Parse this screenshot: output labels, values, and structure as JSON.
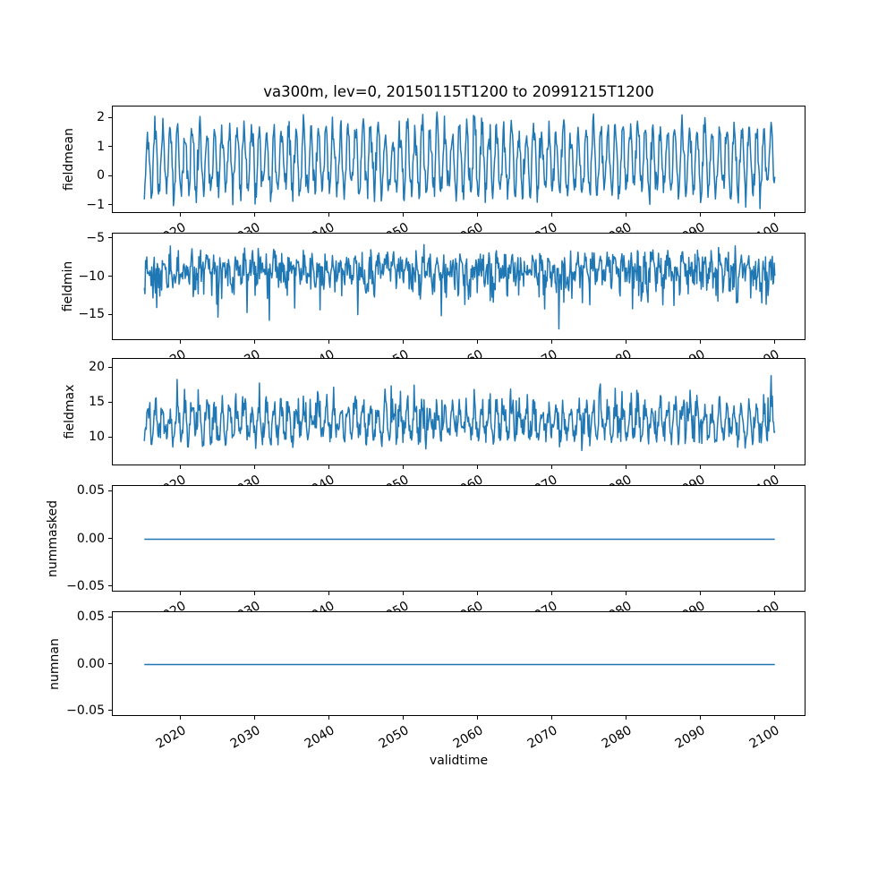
{
  "figure": {
    "title": "va300m, lev=0, 20150115T1200 to 20991215T1200",
    "xlabel": "validtime",
    "line_color": "#1f77b4",
    "background_color": "#ffffff",
    "spine_color": "#000000"
  },
  "x_axis": {
    "label": "validtime",
    "xlim": [
      2010.79,
      2104.21
    ],
    "ticks": {
      "values": [
        2020,
        2030,
        2040,
        2050,
        2060,
        2070,
        2080,
        2090,
        2100
      ],
      "labels": [
        "2020",
        "2030",
        "2040",
        "2050",
        "2060",
        "2070",
        "2080",
        "2090",
        "2100"
      ]
    },
    "tick_label_rotation_deg": 30,
    "points": {
      "start_decimal_year": 2015.0417,
      "step_years": 0.0833333,
      "n_points": 1020
    }
  },
  "chart_data": [
    {
      "type": "line",
      "name": "fieldmean",
      "ylabel": "fieldmean",
      "ylim": [
        -1.28,
        2.41
      ],
      "yticks": {
        "values": [
          2,
          1,
          0,
          -1
        ],
        "labels": [
          "2",
          "1",
          "0",
          "−1"
        ]
      },
      "series": {
        "kind": "synthetic-monthly",
        "description": "monthly field mean, annual cycle; peaks ~1.2 to 2.2, troughs ~-0.2 to -1.1",
        "base": 0.55,
        "seasonal_amplitude": 1.05,
        "noise_sd": 0.28,
        "spike_amplitude": 0,
        "clip": [
          -1.1,
          2.22
        ],
        "seed": 11
      }
    },
    {
      "type": "line",
      "name": "fieldmin",
      "ylabel": "fieldmin",
      "ylim": [
        -18.4,
        -4.3
      ],
      "yticks": {
        "values": [
          -5,
          -10,
          -15
        ],
        "labels": [
          "−5",
          "−10",
          "−15"
        ]
      },
      "series": {
        "kind": "synthetic-monthly",
        "description": "monthly field minimum, noisy around -9 with downward spikes to ~-17",
        "base": -8.6,
        "seasonal_amplitude": 1.0,
        "noise_sd": 0.9,
        "spike_amplitude": -2.0,
        "clip": [
          -17.3,
          -5.3
        ],
        "seed": 22
      }
    },
    {
      "type": "line",
      "name": "fieldmax",
      "ylabel": "fieldmax",
      "ylim": [
        5.9,
        21.3
      ],
      "yticks": {
        "values": [
          20,
          15,
          10
        ],
        "labels": [
          "20",
          "15",
          "10"
        ]
      },
      "series": {
        "kind": "synthetic-monthly",
        "description": "monthly field maximum, base ~10-13 with upward peaks to ~20",
        "base": 11.6,
        "seasonal_amplitude": 2.1,
        "noise_sd": 0.7,
        "spike_amplitude": 1.9,
        "clip": [
          7.0,
          20.3
        ],
        "seed": 33
      }
    },
    {
      "type": "line",
      "name": "nummasked",
      "ylabel": "nummasked",
      "ylim": [
        -0.056,
        0.056
      ],
      "yticks": {
        "values": [
          0.05,
          0,
          -0.05
        ],
        "labels": [
          "0.05",
          "0.00",
          "−0.05"
        ]
      },
      "series": {
        "kind": "constant",
        "description": "number of masked points, constant zero",
        "constant": 0
      }
    },
    {
      "type": "line",
      "name": "numnan",
      "ylabel": "numnan",
      "ylim": [
        -0.056,
        0.056
      ],
      "yticks": {
        "values": [
          0.05,
          0,
          -0.05
        ],
        "labels": [
          "0.05",
          "0.00",
          "−0.05"
        ]
      },
      "series": {
        "kind": "constant",
        "description": "number of NaN points, constant zero",
        "constant": 0
      }
    }
  ]
}
